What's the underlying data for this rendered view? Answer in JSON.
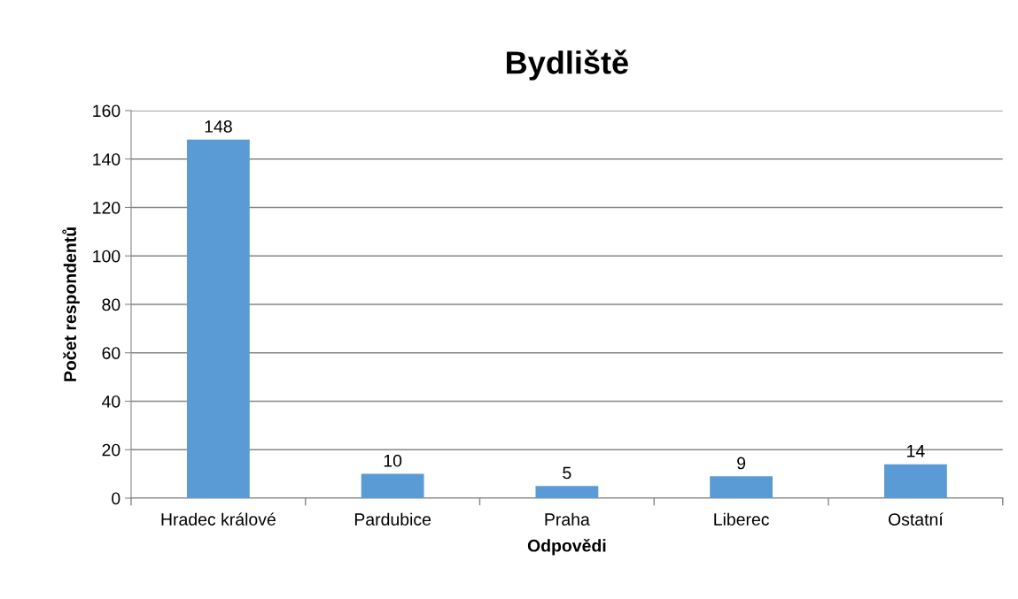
{
  "chart_data": {
    "type": "bar",
    "title": "Bydliště",
    "xlabel": "Odpovědi",
    "ylabel": "Počet respondentů",
    "categories": [
      "Hradec králové",
      "Pardubice",
      "Praha",
      "Liberec",
      "Ostatní"
    ],
    "values": [
      148,
      10,
      5,
      9,
      14
    ],
    "color": "#5b9bd5",
    "ylim": [
      0,
      160
    ],
    "yticks": [
      0,
      20,
      40,
      60,
      80,
      100,
      120,
      140,
      160
    ],
    "grid": "y",
    "data_labels": true
  }
}
